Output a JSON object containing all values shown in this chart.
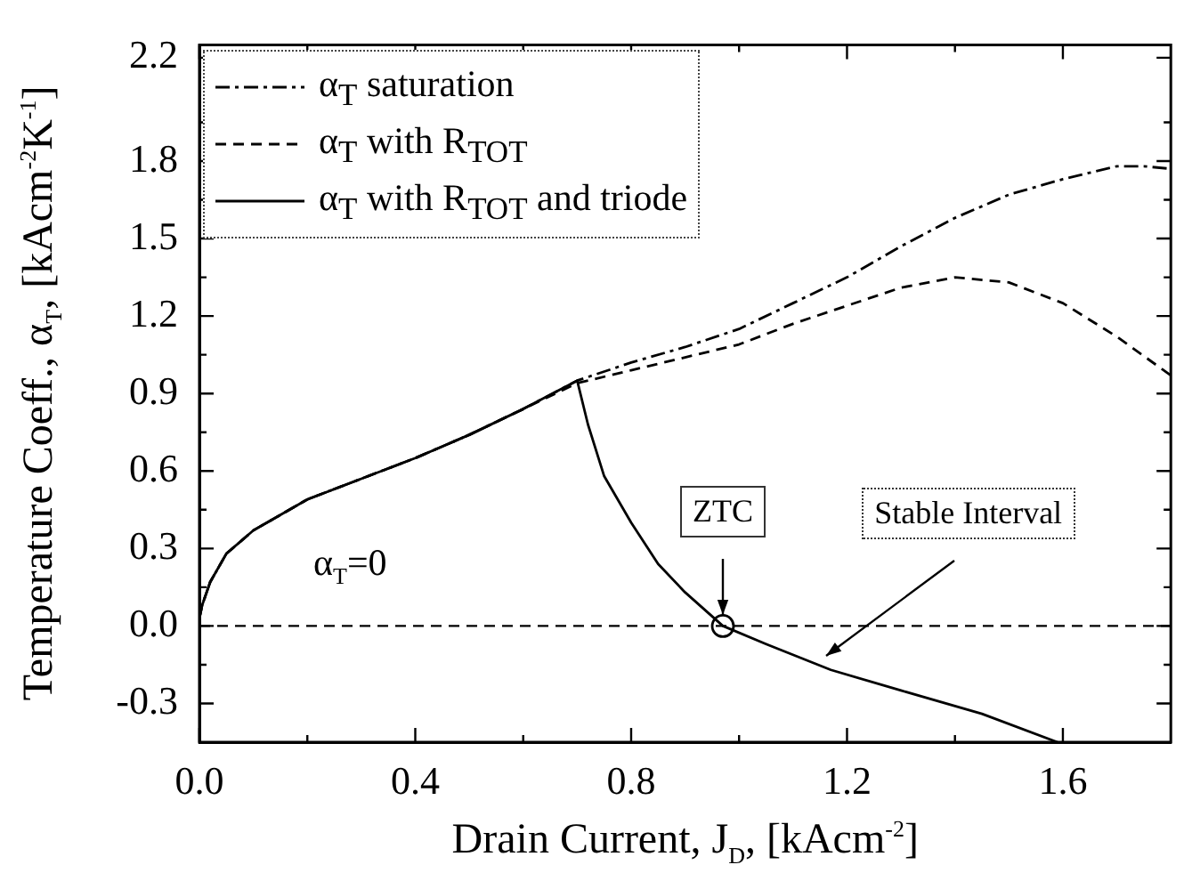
{
  "chart_data": {
    "type": "line",
    "xlabel": "Drain Current, J$_{D}$, [kAcm$^{-2}$]",
    "ylabel": "Temperature Coeff., α$_{T}$, [kAcm$^{-2}$K$^{-1}$]",
    "xlim": [
      0,
      1.8
    ],
    "ylim": [
      -0.45,
      2.25
    ],
    "xticks": [
      {
        "value": 0,
        "label": "0.0"
      },
      {
        "value": 0.2,
        "label": null
      },
      0.4,
      {
        "value": 0.6,
        "label": null
      },
      0.8,
      {
        "value": 1.0,
        "label": null
      },
      1.2,
      {
        "value": 1.4,
        "label": null
      },
      1.6
    ],
    "yticks": [
      {
        "value": -0.3,
        "label": "-0.3"
      },
      {
        "value": -0.15,
        "label": null
      },
      {
        "value": 0,
        "label": "0.0"
      },
      {
        "value": 0.15,
        "label": null
      },
      0.3,
      {
        "value": 0.45,
        "label": null
      },
      0.6,
      {
        "value": 0.75,
        "label": null
      },
      0.9,
      {
        "value": 1.05,
        "label": null
      },
      1.2,
      {
        "value": 1.35,
        "label": null
      },
      1.5,
      {
        "value": 1.65,
        "label": null
      },
      1.8,
      {
        "value": 1.95,
        "label": null
      },
      2.2
    ],
    "grid": false,
    "legend": "top left",
    "marker": "none",
    "series": [
      {
        "name": "α$_{T}$ saturation",
        "color": "#000000",
        "line_style": "dashdot",
        "x": [
          0,
          0.005,
          0.02,
          0.05,
          0.1,
          0.2,
          0.3,
          0.4,
          0.5,
          0.6,
          0.7,
          0.8,
          0.9,
          1.0,
          1.1,
          1.2,
          1.3,
          1.4,
          1.5,
          1.6,
          1.7,
          1.75,
          1.8
        ],
        "values": [
          0.03,
          0.08,
          0.17,
          0.28,
          0.37,
          0.49,
          0.57,
          0.65,
          0.74,
          0.84,
          0.95,
          1.02,
          1.08,
          1.15,
          1.25,
          1.35,
          1.47,
          1.58,
          1.67,
          1.73,
          1.78,
          1.78,
          1.77
        ]
      },
      {
        "name": "α$_{T}$ with R$_{TOT}$",
        "color": "#000000",
        "line_style": "dashed",
        "x": [
          0,
          0.005,
          0.02,
          0.05,
          0.1,
          0.2,
          0.3,
          0.4,
          0.5,
          0.6,
          0.7,
          0.8,
          0.9,
          1.0,
          1.1,
          1.2,
          1.3,
          1.4,
          1.5,
          1.6,
          1.7,
          1.8
        ],
        "values": [
          0.03,
          0.08,
          0.17,
          0.28,
          0.37,
          0.49,
          0.57,
          0.65,
          0.74,
          0.84,
          0.94,
          0.99,
          1.04,
          1.09,
          1.17,
          1.24,
          1.31,
          1.35,
          1.33,
          1.25,
          1.12,
          0.97
        ]
      },
      {
        "name": "α$_{T}$ with R$_{TOT}$ and triode",
        "color": "#000000",
        "line_style": "solid",
        "x": [
          0,
          0.005,
          0.02,
          0.05,
          0.1,
          0.2,
          0.3,
          0.4,
          0.5,
          0.6,
          0.7,
          0.72,
          0.75,
          0.8,
          0.85,
          0.9,
          0.97,
          1.05,
          1.17,
          1.3,
          1.45,
          1.59
        ],
        "values": [
          0.03,
          0.08,
          0.17,
          0.28,
          0.37,
          0.49,
          0.57,
          0.65,
          0.74,
          0.84,
          0.95,
          0.78,
          0.58,
          0.4,
          0.24,
          0.13,
          0,
          -0.07,
          -0.17,
          -0.25,
          -0.34,
          -0.45
        ]
      },
      {
        "type": "scatter",
        "color": "#000000",
        "marker": "circle",
        "x": [
          0.97
        ],
        "values": [
          0
        ]
      }
    ],
    "ref_lines": [
      {
        "axis": "y",
        "value": 0,
        "label": "α$_{T}$=0",
        "line_style": "dashed",
        "color": "#000000"
      }
    ],
    "annotations": [
      {
        "text": "ZTC",
        "x": 0.97,
        "y": 0
      },
      {
        "text": "Stable Interval",
        "x": 1.16,
        "y": -0.16
      }
    ]
  }
}
